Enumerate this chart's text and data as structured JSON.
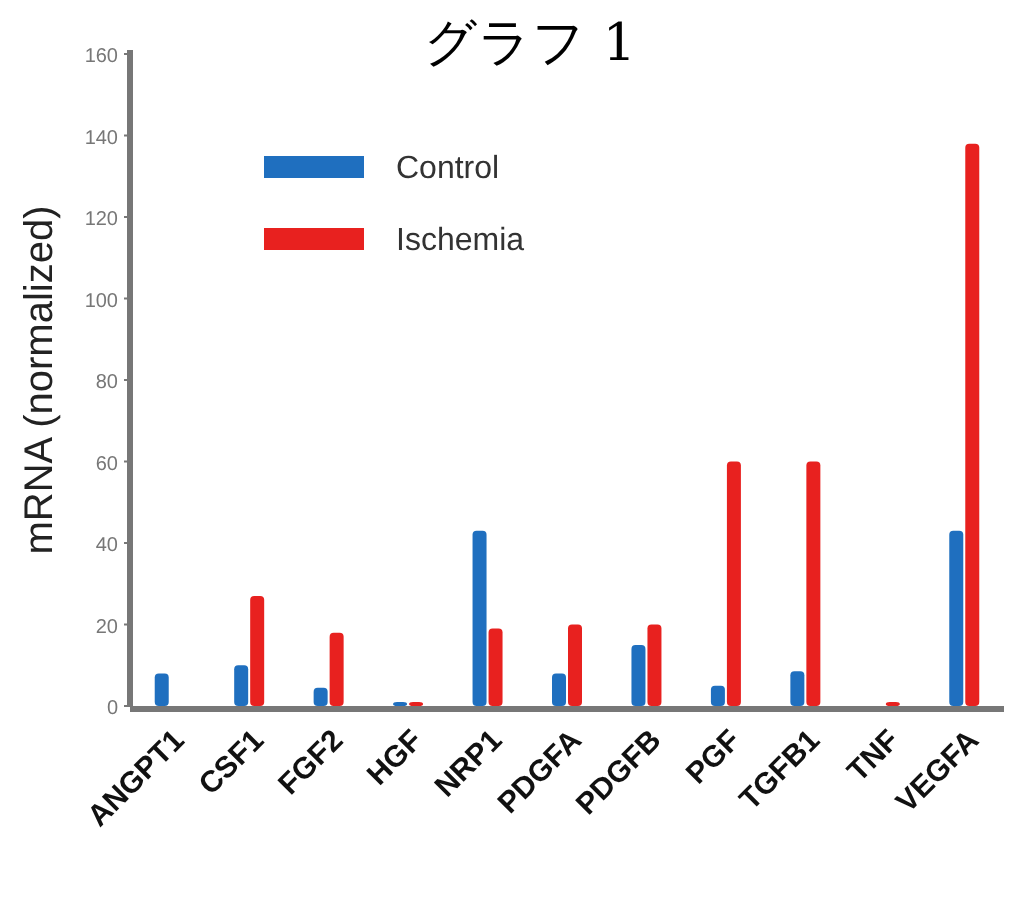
{
  "chart_data": {
    "type": "bar",
    "title": "グラフ 1",
    "ylabel": "mRNA (normalized)",
    "categories": [
      "ANGPT1",
      "CSF1",
      "FGF2",
      "HGF",
      "NRP1",
      "PDGFA",
      "PDGFB",
      "PGF",
      "TGFB1",
      "TNF",
      "VEGFA"
    ],
    "series": [
      {
        "name": "Control",
        "color": "#1f6fbf",
        "values": [
          8,
          10,
          4.5,
          1,
          43,
          8,
          15,
          5,
          8.5,
          null,
          43
        ]
      },
      {
        "name": "Ischemia",
        "color": "#e8211f",
        "values": [
          null,
          27,
          18,
          1,
          19,
          20,
          20,
          60,
          60,
          1,
          138
        ]
      }
    ],
    "ylim": [
      0,
      160
    ],
    "yticks": [
      0,
      20,
      40,
      60,
      80,
      100,
      120,
      140,
      160
    ],
    "legend": "top left",
    "grid": false
  }
}
